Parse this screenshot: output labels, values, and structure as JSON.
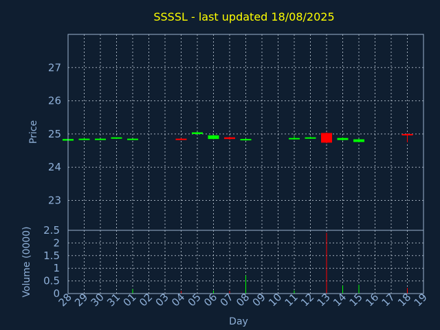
{
  "chart_data": [
    {
      "type": "candlestick",
      "title": "SSSSL - last updated 18/08/2025",
      "ylabel": "Price",
      "ylim": [
        22.1,
        28.0
      ],
      "yticks": [
        23,
        24,
        25,
        26,
        27
      ],
      "grid": true,
      "x_dates": [
        "28",
        "29",
        "30",
        "31",
        "01",
        "02",
        "03",
        "04",
        "05",
        "06",
        "07",
        "08",
        "09",
        "10",
        "11",
        "12",
        "13",
        "14",
        "15",
        "16",
        "17",
        "18",
        "19"
      ],
      "candles": [
        {
          "day": "28",
          "open": 24.8,
          "high": 24.85,
          "low": 24.78,
          "close": 24.85
        },
        {
          "day": "29",
          "open": 24.84,
          "high": 24.88,
          "low": 24.82,
          "close": 24.86
        },
        {
          "day": "30",
          "open": 24.84,
          "high": 24.86,
          "low": 24.82,
          "close": 24.86
        },
        {
          "day": "31",
          "open": 24.87,
          "high": 24.9,
          "low": 24.85,
          "close": 24.9
        },
        {
          "day": "01",
          "open": 24.83,
          "high": 24.86,
          "low": 24.82,
          "close": 24.86
        },
        {
          "day": "04",
          "open": 24.86,
          "high": 24.88,
          "low": 24.84,
          "close": 24.84
        },
        {
          "day": "05",
          "open": 25.0,
          "high": 25.07,
          "low": 24.99,
          "close": 25.05
        },
        {
          "day": "06",
          "open": 24.85,
          "high": 24.98,
          "low": 24.84,
          "close": 24.96
        },
        {
          "day": "07",
          "open": 24.9,
          "high": 24.92,
          "low": 24.83,
          "close": 24.85
        },
        {
          "day": "08",
          "open": 24.82,
          "high": 24.87,
          "low": 24.8,
          "close": 24.85
        },
        {
          "day": "11",
          "open": 24.85,
          "high": 24.95,
          "low": 24.83,
          "close": 24.88
        },
        {
          "day": "12",
          "open": 24.87,
          "high": 24.92,
          "low": 24.86,
          "close": 24.9
        },
        {
          "day": "13",
          "open": 25.03,
          "high": 25.05,
          "low": 24.72,
          "close": 24.74
        },
        {
          "day": "14",
          "open": 24.82,
          "high": 24.9,
          "low": 24.8,
          "close": 24.88
        },
        {
          "day": "15",
          "open": 24.76,
          "high": 24.86,
          "low": 24.75,
          "close": 24.84
        },
        {
          "day": "18",
          "open": 25.0,
          "high": 25.02,
          "low": 24.75,
          "close": 24.98
        }
      ],
      "up_color": "#00ff00",
      "down_color": "#ff0000"
    },
    {
      "type": "bar",
      "ylabel": "Volume (0000)",
      "ylim": [
        0,
        2.5
      ],
      "yticks": [
        "0",
        "0.5",
        "1",
        "1.5",
        "2",
        "2.5"
      ],
      "ytick_values": [
        0,
        0.5,
        1,
        1.5,
        2,
        2.5
      ],
      "xlabel": "Day",
      "grid": true,
      "bars": [
        {
          "day": "01",
          "value": 0.18,
          "color": "#00ff00"
        },
        {
          "day": "04",
          "value": 0.1,
          "color": "#ff0000"
        },
        {
          "day": "06",
          "value": 0.12,
          "color": "#00ff00"
        },
        {
          "day": "07",
          "value": 0.1,
          "color": "#ff0000"
        },
        {
          "day": "08",
          "value": 0.72,
          "color": "#00ff00"
        },
        {
          "day": "11",
          "value": 0.12,
          "color": "#00ff00"
        },
        {
          "day": "13",
          "value": 2.4,
          "color": "#ff0000"
        },
        {
          "day": "14",
          "value": 0.32,
          "color": "#00ff00"
        },
        {
          "day": "15",
          "value": 0.35,
          "color": "#00ff00"
        },
        {
          "day": "18",
          "value": 0.22,
          "color": "#ff0000"
        }
      ]
    }
  ]
}
